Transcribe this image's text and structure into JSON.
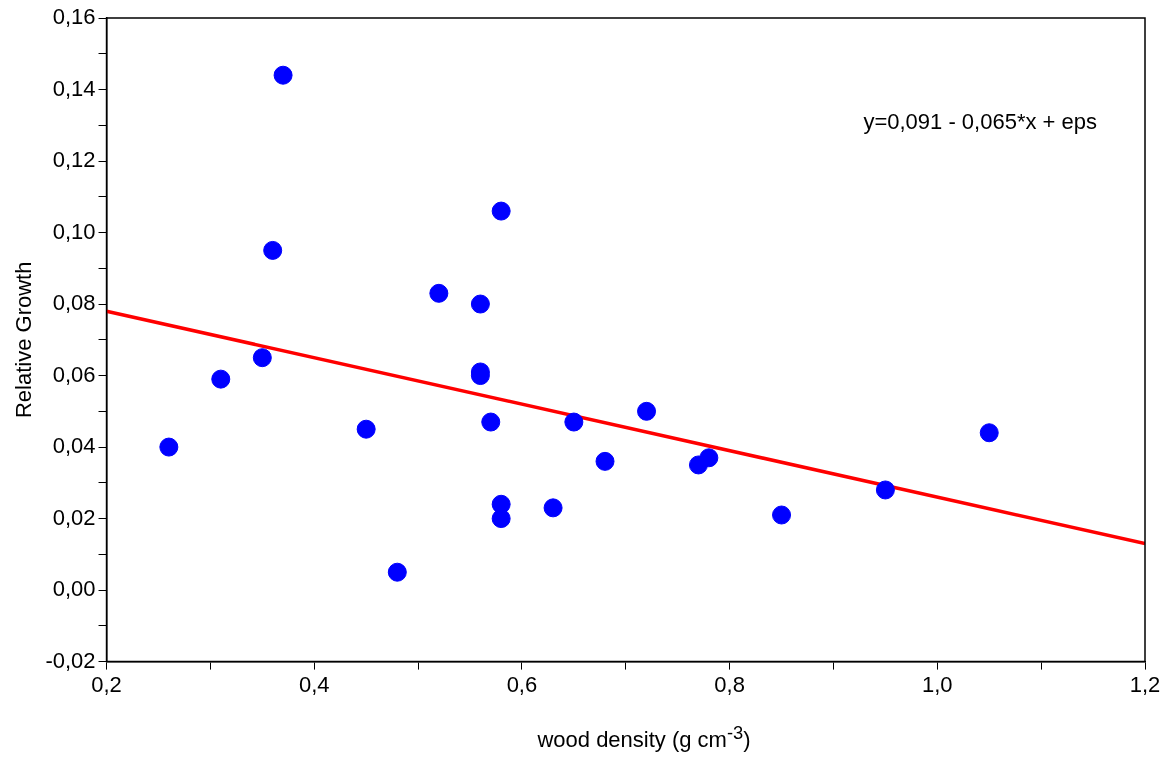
{
  "chart_data": {
    "type": "scatter",
    "xlabel": "wood density (g cm$^{-3}$)",
    "ylabel": "Relative Growth",
    "annotations": [
      "y=0,091 - 0,065*x + eps"
    ],
    "xlim": [
      0.2,
      1.2
    ],
    "ylim": [
      -0.02,
      0.16
    ],
    "xticks": [
      {
        "value": 0.2,
        "label": "0,2"
      },
      {
        "value": 0.3,
        "label": null
      },
      {
        "value": 0.4,
        "label": "0,4"
      },
      {
        "value": 0.5,
        "label": null
      },
      {
        "value": 0.6,
        "label": "0,6"
      },
      {
        "value": 0.7,
        "label": null
      },
      {
        "value": 0.8,
        "label": "0,8"
      },
      {
        "value": 0.9,
        "label": null
      },
      {
        "value": 1.0,
        "label": "1,0"
      },
      {
        "value": 1.1,
        "label": null
      },
      {
        "value": 1.2,
        "label": "1,2"
      }
    ],
    "yticks": [
      {
        "value": -0.02,
        "label": "-0,02"
      },
      {
        "value": -0.01,
        "label": null
      },
      {
        "value": 0,
        "label": "0,00"
      },
      {
        "value": 0.01,
        "label": null
      },
      {
        "value": 0.02,
        "label": "0,02"
      },
      {
        "value": 0.03,
        "label": null
      },
      {
        "value": 0.04,
        "label": "0,04"
      },
      {
        "value": 0.05,
        "label": null
      },
      {
        "value": 0.06,
        "label": "0,06"
      },
      {
        "value": 0.07,
        "label": null
      },
      {
        "value": 0.08,
        "label": "0,08"
      },
      {
        "value": 0.09,
        "label": null
      },
      {
        "value": 0.1,
        "label": "0,10"
      },
      {
        "value": 0.11,
        "label": null
      },
      {
        "value": 0.12,
        "label": "0,12"
      },
      {
        "value": 0.13,
        "label": null
      },
      {
        "value": 0.14,
        "label": "0,14"
      },
      {
        "value": 0.15,
        "label": null
      },
      {
        "value": 0.16,
        "label": "0,16"
      }
    ],
    "grid": false,
    "legend": false,
    "marker": "circle",
    "series": [
      {
        "color": "#0000ff",
        "x": [
          0.26,
          0.31,
          0.35,
          0.36,
          0.37,
          0.45,
          0.48,
          0.52,
          0.56,
          0.56,
          0.56,
          0.57,
          0.58,
          0.58,
          0.58,
          0.63,
          0.65,
          0.68,
          0.72,
          0.77,
          0.78,
          0.85,
          0.95,
          1.05
        ],
        "values": [
          0.04,
          0.059,
          0.065,
          0.095,
          0.144,
          0.045,
          0.005,
          0.083,
          0.08,
          0.061,
          0.06,
          0.047,
          0.106,
          0.024,
          0.02,
          0.023,
          0.047,
          0.036,
          0.05,
          0.035,
          0.037,
          0.021,
          0.028,
          0.044
        ]
      },
      {
        "type": "line",
        "color": "#ff0000",
        "line_style": "solid",
        "marker": "none",
        "x": [
          0.2,
          1.2
        ],
        "values": [
          0.078,
          0.013
        ]
      }
    ]
  }
}
